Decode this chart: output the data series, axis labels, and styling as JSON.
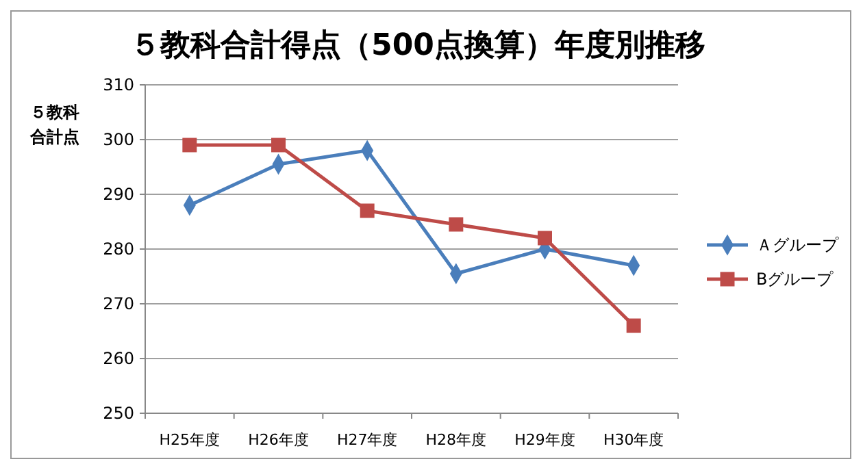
{
  "chart_data": {
    "type": "line",
    "title": "５教科合計得点（500点換算）年度別推移",
    "ylabel": "５教科合計点",
    "categories": [
      "H25年度",
      "H26年度",
      "H27年度",
      "H28年度",
      "H29年度",
      "H30年度"
    ],
    "series": [
      {
        "name": "Ａグループ",
        "color": "#4a7ebb",
        "marker": "diamond",
        "values": [
          288,
          295.5,
          298,
          275.5,
          280,
          277
        ]
      },
      {
        "name": "Bグループ",
        "color": "#be4b48",
        "marker": "square",
        "values": [
          299,
          299,
          287,
          284.5,
          282,
          266
        ]
      }
    ],
    "ylim": [
      250,
      310
    ],
    "yticks": [
      250,
      260,
      270,
      280,
      290,
      300,
      310
    ],
    "grid": "y",
    "legend": "right",
    "line_style": "solid"
  }
}
